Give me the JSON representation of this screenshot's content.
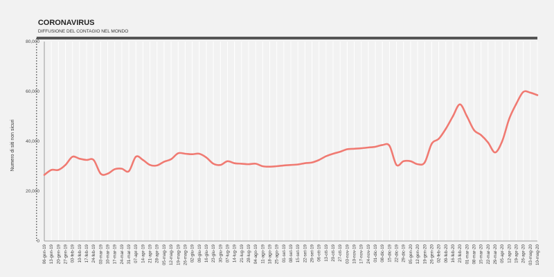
{
  "chart_data": {
    "type": "line",
    "title": "",
    "ylabel": "Numero di siti non sicuri",
    "xlabel": "",
    "ylim": [
      0,
      80000
    ],
    "yticks": [
      0,
      20000,
      40000,
      60000,
      80000
    ],
    "ytick_labels": [
      "0",
      "20,000",
      "40,000",
      "60,000",
      "80,000"
    ],
    "grid": "vertical",
    "line_color": "#f07a72",
    "axis_color": "#9a9a9a",
    "annotation": {
      "title": "CORONAVIRUS",
      "subtitle": "DIFFUSIONE DEL CONTAGIO NEL MONDO",
      "start_category": "25-dic-19",
      "color": "#555555"
    },
    "categories": [
      "06-gen-19",
      "13-gen-19",
      "20-gen-19",
      "27-gen-19",
      "03-feb-19",
      "10-feb-19",
      "17-feb-19",
      "24-feb-19",
      "03-mar-19",
      "10-mar-19",
      "17-mar-19",
      "24-mar-19",
      "31-mar-19",
      "07-apr-19",
      "14-apr-19",
      "21-apr-19",
      "28-apr-19",
      "05-mag-19",
      "12-mag-19",
      "19-mag-19",
      "26-mag-19",
      "02-giu-19",
      "09-giu-19",
      "16-giu-19",
      "23-giu-19",
      "30-giu-19",
      "07-lug-19",
      "14-lug-19",
      "21-lug-19",
      "28-lug-19",
      "04-ago-19",
      "11-ago-19",
      "18-ago-19",
      "25-ago-19",
      "01-set-19",
      "08-set-19",
      "15-set-19",
      "22-set-19",
      "29-set-19",
      "06-ott-19",
      "13-ott-19",
      "20-ott-19",
      "27-ott-19",
      "03-nov-19",
      "10-nov-19",
      "17-nov-19",
      "24-nov-19",
      "01-dic-19",
      "08-dic-19",
      "15-dic-19",
      "22-dic-19",
      "29-dic-19",
      "05-gen-20",
      "12-gen-20",
      "19-gen-20",
      "26-gen-20",
      "02-feb-20",
      "09-feb-20",
      "16-feb-20",
      "23-feb-20",
      "01-mar-20",
      "08-mar-20",
      "15-mar-20",
      "22-mar-20",
      "29-mar-20",
      "05-apr-20",
      "12-apr-20",
      "19-apr-20",
      "26-apr-20",
      "03-mag-20",
      "10-mag-20"
    ],
    "series": [
      {
        "name": "",
        "values": [
          26500,
          28500,
          28500,
          30500,
          33800,
          33000,
          32500,
          32500,
          27000,
          27000,
          28800,
          29000,
          28000,
          33800,
          32500,
          30500,
          30300,
          31800,
          32800,
          35200,
          35000,
          34800,
          35000,
          33500,
          31000,
          30500,
          32000,
          31200,
          31000,
          30800,
          31000,
          30000,
          29800,
          30000,
          30300,
          30500,
          30700,
          31200,
          31500,
          32500,
          34000,
          35000,
          35800,
          36800,
          37000,
          37200,
          37500,
          37800,
          38500,
          38200,
          30500,
          32000,
          32000,
          30800,
          31500,
          39000,
          41000,
          45000,
          50000,
          54800,
          50000,
          44500,
          42500,
          39500,
          35500,
          40000,
          49000,
          55000,
          59800,
          59500,
          58500
        ]
      }
    ]
  }
}
